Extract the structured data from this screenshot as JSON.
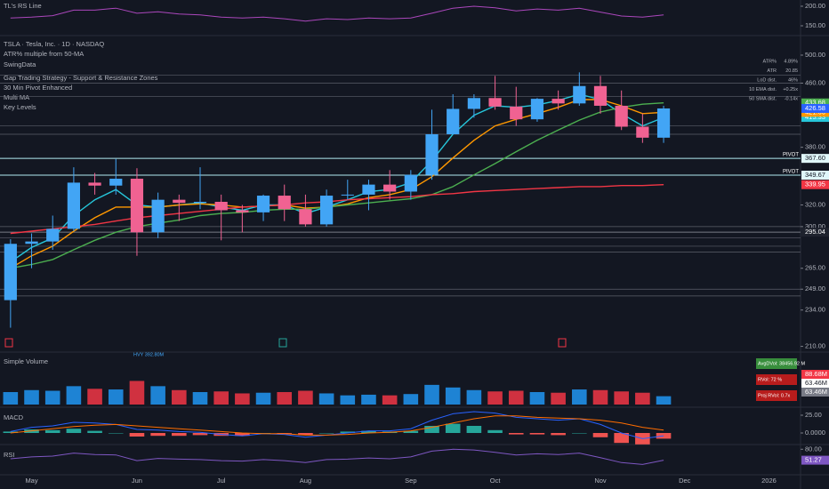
{
  "chart_data": [
    {
      "type": "line",
      "title": "TL's RS Line",
      "color": "#ab47bc",
      "values": [
        170,
        172,
        176,
        190,
        190,
        195,
        182,
        186,
        180,
        178,
        172,
        170,
        172,
        168,
        162,
        168,
        166,
        170,
        168,
        170,
        182,
        195,
        200,
        196,
        188,
        193,
        190,
        195,
        185,
        175,
        172,
        178,
        null,
        null,
        null,
        null,
        null,
        null
      ],
      "ylim": [
        140,
        205
      ],
      "yticks": [
        {
          "value": 200,
          "label": "200.00"
        },
        {
          "value": 150,
          "label": "150.00"
        }
      ]
    },
    {
      "type": "candlestick",
      "title": "TSLA · Tesla, Inc. · 1D · NASDAQ",
      "indicators": [
        "ATR% multiple from 50-MA",
        "SwingData",
        "Gap Trading Strategy - Support & Resistance Zones",
        "30 Min Pivot Enhanced",
        "Multi MA",
        "Key Levels"
      ],
      "categories": [
        null,
        "May",
        null,
        null,
        null,
        null,
        "Jun",
        null,
        null,
        null,
        "Jul",
        null,
        null,
        null,
        "Aug",
        null,
        null,
        null,
        null,
        "Sep",
        null,
        null,
        null,
        "Oct",
        null,
        null,
        null,
        null,
        "Nov",
        null,
        null,
        null,
        "Dec",
        null,
        null,
        null,
        "2026",
        null
      ],
      "open": [
        241,
        285,
        287,
        298,
        342,
        339,
        346,
        295,
        325,
        322,
        323,
        315,
        313,
        329,
        316,
        302,
        330,
        330,
        340,
        333,
        350,
        395,
        426,
        440,
        429,
        413,
        439,
        433,
        456,
        430,
        404,
        391,
        null,
        null,
        null,
        null,
        null,
        null
      ],
      "high": [
        289,
        294,
        310,
        358,
        352,
        367,
        357,
        332,
        330,
        358,
        330,
        320,
        330,
        340,
        330,
        335,
        345,
        345,
        355,
        355,
        425,
        445,
        445,
        470,
        455,
        440,
        450,
        475,
        470,
        450,
        420,
        430,
        null,
        null,
        null,
        null,
        null,
        null
      ],
      "low": [
        222,
        265,
        280,
        296,
        330,
        330,
        275,
        290,
        305,
        316,
        288,
        295,
        305,
        305,
        300,
        300,
        325,
        315,
        325,
        325,
        345,
        395,
        415,
        425,
        405,
        410,
        425,
        430,
        420,
        400,
        385,
        385,
        null,
        null,
        null,
        null,
        null,
        null
      ],
      "close": [
        285,
        287,
        298,
        342,
        339,
        346,
        295,
        325,
        322,
        323,
        315,
        313,
        329,
        316,
        302,
        329,
        330,
        340,
        333,
        350,
        395,
        426,
        440,
        429,
        413,
        439,
        433,
        456,
        430,
        404,
        391,
        426.58,
        null,
        null,
        null,
        null,
        null,
        null
      ],
      "up_color": "#42a5f5",
      "down_color": "#f06292",
      "close_label_color": "#2962ff",
      "series": [
        {
          "color": "#26c6da",
          "values": [
            270,
            282,
            290,
            310,
            325,
            335,
            320,
            318,
            320,
            322,
            318,
            315,
            320,
            320,
            312,
            318,
            325,
            333,
            335,
            342,
            365,
            395,
            418,
            430,
            428,
            431,
            437,
            445,
            438,
            420,
            405,
            415.33,
            null,
            null,
            null,
            null,
            null,
            null
          ]
        },
        {
          "color": "#ff9800",
          "values": [
            265,
            275,
            283,
            296,
            308,
            318,
            318,
            318,
            320,
            321,
            320,
            318,
            319,
            320,
            317,
            318,
            321,
            327,
            330,
            335,
            348,
            368,
            388,
            405,
            413,
            420,
            428,
            438,
            438,
            430,
            420,
            421.66,
            null,
            null,
            null,
            null,
            null,
            null
          ]
        },
        {
          "color": "#4caf50",
          "values": [
            265,
            268,
            272,
            280,
            288,
            295,
            300,
            303,
            306,
            310,
            312,
            313,
            315,
            316,
            316,
            318,
            320,
            322,
            324,
            326,
            330,
            338,
            350,
            362,
            375,
            388,
            400,
            412,
            422,
            428,
            432,
            433.68,
            null,
            null,
            null,
            null,
            null,
            null
          ]
        },
        {
          "color": "#f23645",
          "values": [
            294,
            296,
            298,
            300,
            302,
            305,
            308,
            310,
            312,
            314,
            316,
            318,
            319,
            320,
            322,
            323,
            325,
            326,
            327,
            328,
            330,
            331,
            333,
            334,
            335,
            336,
            337,
            338,
            338,
            339,
            339,
            339.95,
            null,
            null,
            null,
            null,
            null,
            null
          ]
        }
      ],
      "log_scale": true,
      "ylim": [
        207,
        500
      ],
      "yticks": [
        {
          "value": 500,
          "label": "500.00"
        },
        {
          "value": 460,
          "label": "460.00"
        },
        {
          "value": 380,
          "label": "380.00"
        },
        {
          "value": 320,
          "label": "320.00"
        },
        {
          "value": 300,
          "label": "300.00"
        },
        {
          "value": 265,
          "label": "265.00"
        },
        {
          "value": 249,
          "label": "249.00"
        },
        {
          "value": 234,
          "label": "234.00"
        },
        {
          "value": 210,
          "label": "210.00"
        }
      ],
      "levels": [
        {
          "value": 367.6,
          "label": "367.60",
          "tag": "PIVOT",
          "color": "#e0f7fa"
        },
        {
          "value": 349.67,
          "label": "349.67",
          "tag": "PIVOT",
          "color": "#e0f7fa"
        },
        {
          "value": 295.04,
          "label": "295.04",
          "color": "#1e222d"
        }
      ],
      "zones": [
        471,
        460,
        442,
        405,
        395,
        300,
        290,
        283,
        278,
        249,
        244
      ],
      "info_table": [
        [
          "ATR%",
          "4.89%"
        ],
        [
          "ATR",
          "20.85"
        ],
        [
          "LoD dist.",
          "46%"
        ],
        [
          "10 EMA dist.",
          "+0.25x"
        ],
        [
          "50 SMA dist.",
          "-0.14x"
        ]
      ]
    },
    {
      "type": "bar",
      "title": "Simple Volume",
      "up_color": "#2196f3",
      "down_color": "#f23645",
      "values": [
        95,
        110,
        105,
        140,
        120,
        115,
        180,
        140,
        110,
        95,
        100,
        85,
        90,
        95,
        105,
        85,
        70,
        75,
        70,
        80,
        150,
        130,
        110,
        100,
        105,
        95,
        90,
        115,
        110,
        100,
        90,
        63.46,
        null,
        null,
        null,
        null,
        null,
        null
      ],
      "ylim": [
        0,
        400
      ],
      "annotation": "HVY 392.80M",
      "stats": [
        "AvgDVol: 38456.92 M",
        "RVol: 72 %",
        "Proj RVol: 0.7x"
      ],
      "markers": [
        {
          "label": "88.68M",
          "color": "#f23645"
        },
        {
          "label": "63.46M",
          "color": "#ffffff"
        },
        {
          "label": "63.46M",
          "color": "#787b86"
        }
      ]
    },
    {
      "type": "macd",
      "title": "MACD",
      "series": [
        {
          "color": "#2962ff",
          "values": [
            2,
            8,
            10,
            15,
            14,
            12,
            5,
            4,
            2,
            1,
            -2,
            -4,
            -1,
            -2,
            -6,
            -3,
            0,
            3,
            3,
            6,
            18,
            27,
            30,
            28,
            22,
            20,
            18,
            20,
            12,
            0,
            -8,
            -4,
            null,
            null,
            null,
            null,
            null,
            null
          ]
        },
        {
          "color": "#ff6d00",
          "values": [
            0,
            3,
            6,
            9,
            11,
            12,
            10,
            8,
            6,
            4,
            2,
            0,
            -1,
            -1,
            -3,
            -3,
            -2,
            0,
            1,
            3,
            8,
            14,
            20,
            24,
            24,
            22,
            21,
            20,
            18,
            14,
            8,
            4,
            null,
            null,
            null,
            null,
            null,
            null
          ]
        }
      ],
      "histogram": [
        2,
        5,
        4,
        6,
        3,
        0,
        -5,
        -4,
        -4,
        -3,
        -4,
        -4,
        0,
        -1,
        -3,
        0,
        2,
        3,
        2,
        3,
        10,
        13,
        10,
        4,
        -2,
        -2,
        -3,
        0,
        -6,
        -14,
        -16,
        -8,
        null,
        null,
        null,
        null,
        null,
        null
      ],
      "up_color": "#26a69a",
      "down_color": "#ef5350",
      "ylim": [
        -20,
        35
      ],
      "yticks": [
        {
          "value": 25,
          "label": "25.00"
        },
        {
          "value": 0,
          "label": "0.0000"
        }
      ]
    },
    {
      "type": "line",
      "title": "RSI",
      "color": "#7e57c2",
      "values": [
        55,
        60,
        62,
        70,
        66,
        65,
        50,
        56,
        54,
        53,
        50,
        49,
        53,
        50,
        45,
        53,
        54,
        57,
        55,
        60,
        75,
        80,
        78,
        72,
        65,
        68,
        66,
        70,
        58,
        45,
        40,
        51.27,
        null,
        null,
        null,
        null,
        null,
        null
      ],
      "ylim": [
        20,
        90
      ],
      "yticks": [
        {
          "value": 80,
          "label": "80.00"
        }
      ],
      "last_label": true
    }
  ]
}
